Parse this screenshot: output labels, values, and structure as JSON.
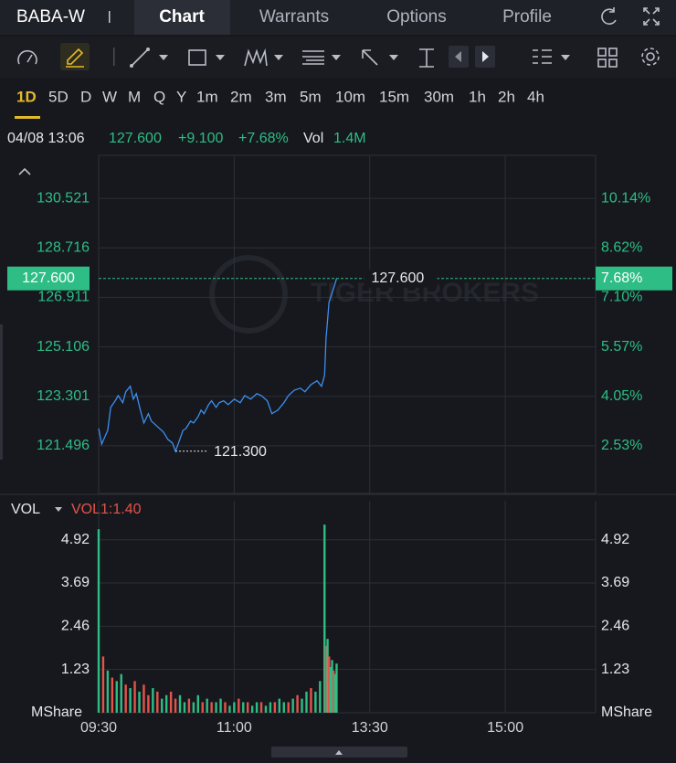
{
  "header": {
    "symbol": "BABA-W",
    "tabs": [
      "Chart",
      "Warrants",
      "Options",
      "Profile"
    ],
    "active_tab": "Chart"
  },
  "timeframes": [
    "1D",
    "5D",
    "D",
    "W",
    "M",
    "Q",
    "Y",
    "1m",
    "2m",
    "3m",
    "5m",
    "10m",
    "15m",
    "30m",
    "1h",
    "2h",
    "4h"
  ],
  "active_timeframe": "1D",
  "quote": {
    "time": "04/08 13:06",
    "price": "127.600",
    "change": "+9.100",
    "change_pct": "+7.68%",
    "vol_label": "Vol",
    "volume": "1.4M"
  },
  "chart_data": [
    {
      "type": "line",
      "color": "#3d8ef0",
      "watermark": "TIGER BROKERS",
      "x": [
        0,
        2,
        6,
        8,
        11,
        13,
        16,
        18,
        21,
        23,
        25,
        28,
        30,
        33,
        35,
        39,
        43,
        46,
        49,
        51,
        53,
        56,
        58,
        61,
        63,
        66,
        68,
        70,
        73,
        75,
        78,
        80,
        83,
        86,
        90,
        94,
        97,
        101,
        105,
        108,
        112,
        115,
        119,
        123,
        126,
        130,
        134,
        137,
        141,
        145,
        148,
        150,
        151,
        153,
        156,
        158
      ],
      "values": [
        122.13,
        121.56,
        122.06,
        122.9,
        123.14,
        123.33,
        123.07,
        123.47,
        123.67,
        123.2,
        123.4,
        122.73,
        122.33,
        122.67,
        122.4,
        122.2,
        122.0,
        121.73,
        121.6,
        121.3,
        121.6,
        122.06,
        122.13,
        122.4,
        122.33,
        122.56,
        122.8,
        122.67,
        123.0,
        123.14,
        122.9,
        123.07,
        123.14,
        123.0,
        123.2,
        123.07,
        123.33,
        123.2,
        123.4,
        123.33,
        123.14,
        122.67,
        122.8,
        123.07,
        123.33,
        123.53,
        123.6,
        123.47,
        123.73,
        123.87,
        123.67,
        124.07,
        125.41,
        126.74,
        127.24,
        127.6
      ],
      "xlim": [
        0,
        330
      ],
      "ylim": [
        119.76,
        132.09
      ],
      "yticks": [
        {
          "value": 121.496,
          "label": "121.496"
        },
        {
          "value": 123.301,
          "label": "123.301"
        },
        {
          "value": 125.106,
          "label": "125.106"
        },
        {
          "value": 126.911,
          "label": "126.911"
        },
        {
          "value": 128.716,
          "label": "128.716"
        },
        {
          "value": 130.521,
          "label": "130.521"
        }
      ],
      "y2lim": [
        1.06,
        11.47
      ],
      "y2ticks": [
        {
          "value": 2.53,
          "label": "2.53%"
        },
        {
          "value": 4.05,
          "label": "4.05%"
        },
        {
          "value": 5.57,
          "label": "5.57%"
        },
        {
          "value": 7.1,
          "label": "7.10%"
        },
        {
          "value": 8.62,
          "label": "8.62%"
        },
        {
          "value": 10.14,
          "label": "10.14%"
        }
      ],
      "last_price": {
        "value": 127.6,
        "label": "127.600"
      },
      "last_change_pct": {
        "value": 7.68,
        "label": "7.68%"
      },
      "low": {
        "x": 51,
        "value": 121.3,
        "label": "121.300"
      },
      "grid": true
    },
    {
      "type": "bar",
      "title": "VOL",
      "indicator": "VOL1:1.40",
      "y_unit": "MShare",
      "x": [
        0,
        3,
        6,
        9,
        12,
        15,
        18,
        21,
        24,
        27,
        30,
        33,
        36,
        39,
        42,
        45,
        48,
        51,
        54,
        57,
        60,
        63,
        66,
        69,
        72,
        75,
        78,
        81,
        84,
        87,
        90,
        93,
        96,
        99,
        102,
        105,
        108,
        111,
        114,
        117,
        120,
        123,
        126,
        129,
        132,
        135,
        138,
        141,
        144,
        147,
        150,
        151,
        152,
        153,
        154,
        155,
        156,
        157,
        158
      ],
      "values": [
        5.22,
        1.6,
        1.2,
        1.0,
        0.9,
        1.1,
        0.8,
        0.7,
        0.9,
        0.6,
        0.8,
        0.5,
        0.7,
        0.6,
        0.4,
        0.5,
        0.6,
        0.4,
        0.5,
        0.3,
        0.4,
        0.3,
        0.5,
        0.3,
        0.4,
        0.3,
        0.3,
        0.4,
        0.3,
        0.2,
        0.3,
        0.4,
        0.3,
        0.3,
        0.2,
        0.3,
        0.3,
        0.2,
        0.3,
        0.3,
        0.4,
        0.3,
        0.3,
        0.4,
        0.5,
        0.4,
        0.6,
        0.7,
        0.6,
        0.9,
        5.35,
        1.9,
        2.1,
        1.6,
        1.3,
        1.5,
        1.2,
        1.1,
        1.4
      ],
      "colors": [
        "#2ebd85",
        "#e5534b",
        "#2ebd85",
        "#e5534b",
        "#2ebd85",
        "#2ebd85",
        "#e5534b",
        "#2ebd85",
        "#e5534b",
        "#2ebd85",
        "#e5534b",
        "#e5534b",
        "#2ebd85",
        "#e5534b",
        "#2ebd85",
        "#2ebd85",
        "#e5534b",
        "#e5534b",
        "#2ebd85",
        "#2ebd85",
        "#e5534b",
        "#2ebd85",
        "#2ebd85",
        "#e5534b",
        "#2ebd85",
        "#e5534b",
        "#2ebd85",
        "#2ebd85",
        "#e5534b",
        "#2ebd85",
        "#2ebd85",
        "#e5534b",
        "#2ebd85",
        "#e5534b",
        "#2ebd85",
        "#2ebd85",
        "#e5534b",
        "#2ebd85",
        "#2ebd85",
        "#e5534b",
        "#2ebd85",
        "#2ebd85",
        "#e5534b",
        "#2ebd85",
        "#e5534b",
        "#2ebd85",
        "#2ebd85",
        "#e5534b",
        "#2ebd85",
        "#2ebd85",
        "#2ebd85",
        "#e5534b",
        "#2ebd85",
        "#e5534b",
        "#2ebd85",
        "#2ebd85",
        "#e5534b",
        "#2ebd85",
        "#2ebd85"
      ],
      "xlim": [
        0,
        330
      ],
      "xticks": [
        {
          "value": 0,
          "label": "09:30"
        },
        {
          "value": 90,
          "label": "11:00"
        },
        {
          "value": 180,
          "label": "13:30"
        },
        {
          "value": 270,
          "label": "15:00"
        }
      ],
      "ylim": [
        0,
        5.51
      ],
      "yticks": [
        1.23,
        2.46,
        3.69,
        4.92
      ],
      "grid": true
    }
  ]
}
